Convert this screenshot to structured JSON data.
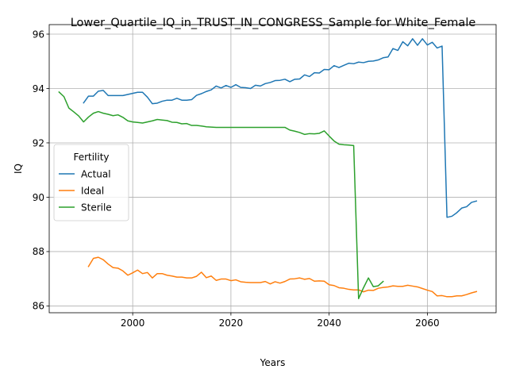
{
  "chart_data": {
    "type": "line",
    "title": "Lower_Quartile_IQ_in_TRUST_IN_CONGRESS_Sample for White_Female",
    "xlabel": "Years",
    "ylabel": "IQ",
    "xlim": [
      1983,
      2074
    ],
    "ylim": [
      85.75,
      96.35
    ],
    "xticks": [
      2000,
      2020,
      2040,
      2060
    ],
    "yticks": [
      86,
      88,
      90,
      92,
      94,
      96
    ],
    "grid": true,
    "legend": {
      "title": "Fertility",
      "placement": "center-left"
    },
    "series": [
      {
        "name": "Actual",
        "color": "#1f77b4",
        "x": [
          1990,
          1991,
          1992,
          1993,
          1994,
          1995,
          1996,
          1997,
          1998,
          1999,
          2000,
          2001,
          2002,
          2003,
          2004,
          2005,
          2006,
          2007,
          2008,
          2009,
          2010,
          2011,
          2012,
          2013,
          2014,
          2015,
          2016,
          2017,
          2018,
          2019,
          2020,
          2021,
          2022,
          2023,
          2024,
          2025,
          2026,
          2027,
          2028,
          2029,
          2030,
          2031,
          2032,
          2033,
          2034,
          2035,
          2036,
          2037,
          2038,
          2039,
          2040,
          2041,
          2042,
          2043,
          2044,
          2045,
          2046,
          2047,
          2048,
          2049,
          2050,
          2051,
          2052,
          2053,
          2054,
          2055,
          2056,
          2057,
          2058,
          2059,
          2060,
          2061,
          2062,
          2063,
          2064,
          2065,
          2066,
          2067,
          2068,
          2069,
          2070
        ],
        "values": [
          93.47,
          93.72,
          93.72,
          93.9,
          93.93,
          93.74,
          93.74,
          93.74,
          93.74,
          93.78,
          93.82,
          93.86,
          93.86,
          93.68,
          93.44,
          93.46,
          93.53,
          93.57,
          93.57,
          93.64,
          93.57,
          93.57,
          93.59,
          93.75,
          93.81,
          93.89,
          93.95,
          94.09,
          94.02,
          94.11,
          94.04,
          94.14,
          94.04,
          94.03,
          94.0,
          94.12,
          94.09,
          94.18,
          94.22,
          94.29,
          94.3,
          94.34,
          94.25,
          94.34,
          94.35,
          94.5,
          94.44,
          94.58,
          94.57,
          94.7,
          94.69,
          94.84,
          94.77,
          94.85,
          94.93,
          94.91,
          94.97,
          94.95,
          95.0,
          95.01,
          95.05,
          95.13,
          95.16,
          95.47,
          95.4,
          95.72,
          95.57,
          95.83,
          95.59,
          95.83,
          95.6,
          95.7,
          95.49,
          95.56,
          89.26,
          89.3,
          89.43,
          89.6,
          89.65,
          89.81,
          89.86
        ]
      },
      {
        "name": "Ideal",
        "color": "#ff7f0e",
        "x": [
          1991,
          1992,
          1993,
          1994,
          1995,
          1996,
          1997,
          1998,
          1999,
          2000,
          2001,
          2002,
          2003,
          2004,
          2005,
          2006,
          2007,
          2008,
          2009,
          2010,
          2011,
          2012,
          2013,
          2014,
          2015,
          2016,
          2017,
          2018,
          2019,
          2020,
          2021,
          2022,
          2023,
          2024,
          2025,
          2026,
          2027,
          2028,
          2029,
          2030,
          2031,
          2032,
          2033,
          2034,
          2035,
          2036,
          2037,
          2038,
          2039,
          2040,
          2041,
          2042,
          2043,
          2044,
          2045,
          2046,
          2047,
          2048,
          2049,
          2050,
          2051,
          2052,
          2053,
          2054,
          2055,
          2056,
          2057,
          2058,
          2059,
          2060,
          2061,
          2062,
          2063,
          2064,
          2065,
          2066,
          2067,
          2068,
          2069,
          2070
        ],
        "values": [
          87.45,
          87.75,
          87.79,
          87.7,
          87.54,
          87.41,
          87.39,
          87.29,
          87.13,
          87.22,
          87.32,
          87.19,
          87.23,
          87.03,
          87.19,
          87.19,
          87.13,
          87.1,
          87.06,
          87.06,
          87.03,
          87.03,
          87.09,
          87.24,
          87.04,
          87.1,
          86.94,
          86.99,
          86.99,
          86.93,
          86.96,
          86.89,
          86.87,
          86.86,
          86.86,
          86.86,
          86.9,
          86.81,
          86.89,
          86.84,
          86.9,
          86.99,
          87.0,
          87.03,
          86.98,
          87.01,
          86.91,
          86.92,
          86.91,
          86.78,
          86.75,
          86.67,
          86.65,
          86.61,
          86.59,
          86.59,
          86.52,
          86.58,
          86.57,
          86.65,
          86.68,
          86.7,
          86.74,
          86.72,
          86.72,
          86.76,
          86.73,
          86.7,
          86.64,
          86.58,
          86.53,
          86.37,
          86.38,
          86.34,
          86.34,
          86.37,
          86.37,
          86.42,
          86.48,
          86.53
        ]
      },
      {
        "name": "Sterile",
        "color": "#2ca02c",
        "x": [
          1985,
          1986,
          1987,
          1988,
          1989,
          1990,
          1991,
          1992,
          1993,
          1994,
          1995,
          1996,
          1997,
          1998,
          1999,
          2000,
          2001,
          2002,
          2003,
          2004,
          2005,
          2006,
          2007,
          2008,
          2009,
          2010,
          2011,
          2012,
          2013,
          2014,
          2015,
          2016,
          2017,
          2018,
          2019,
          2020,
          2021,
          2022,
          2023,
          2024,
          2025,
          2026,
          2027,
          2028,
          2029,
          2030,
          2031,
          2032,
          2033,
          2034,
          2035,
          2036,
          2037,
          2038,
          2039,
          2040,
          2041,
          2042,
          2043,
          2044,
          2045,
          2046,
          2047,
          2048,
          2049,
          2050,
          2051
        ],
        "values": [
          93.87,
          93.7,
          93.28,
          93.14,
          92.99,
          92.77,
          92.95,
          93.09,
          93.15,
          93.09,
          93.05,
          93.0,
          93.03,
          92.94,
          92.81,
          92.77,
          92.75,
          92.73,
          92.77,
          92.81,
          92.86,
          92.84,
          92.82,
          92.76,
          92.75,
          92.7,
          92.71,
          92.64,
          92.64,
          92.62,
          92.59,
          92.58,
          92.57,
          92.57,
          92.57,
          92.57,
          92.57,
          92.57,
          92.57,
          92.57,
          92.57,
          92.57,
          92.57,
          92.57,
          92.57,
          92.57,
          92.57,
          92.47,
          92.43,
          92.38,
          92.31,
          92.34,
          92.33,
          92.35,
          92.44,
          92.25,
          92.07,
          91.95,
          91.93,
          91.92,
          91.9,
          86.27,
          86.67,
          87.03,
          86.71,
          86.74,
          86.9
        ]
      }
    ]
  }
}
